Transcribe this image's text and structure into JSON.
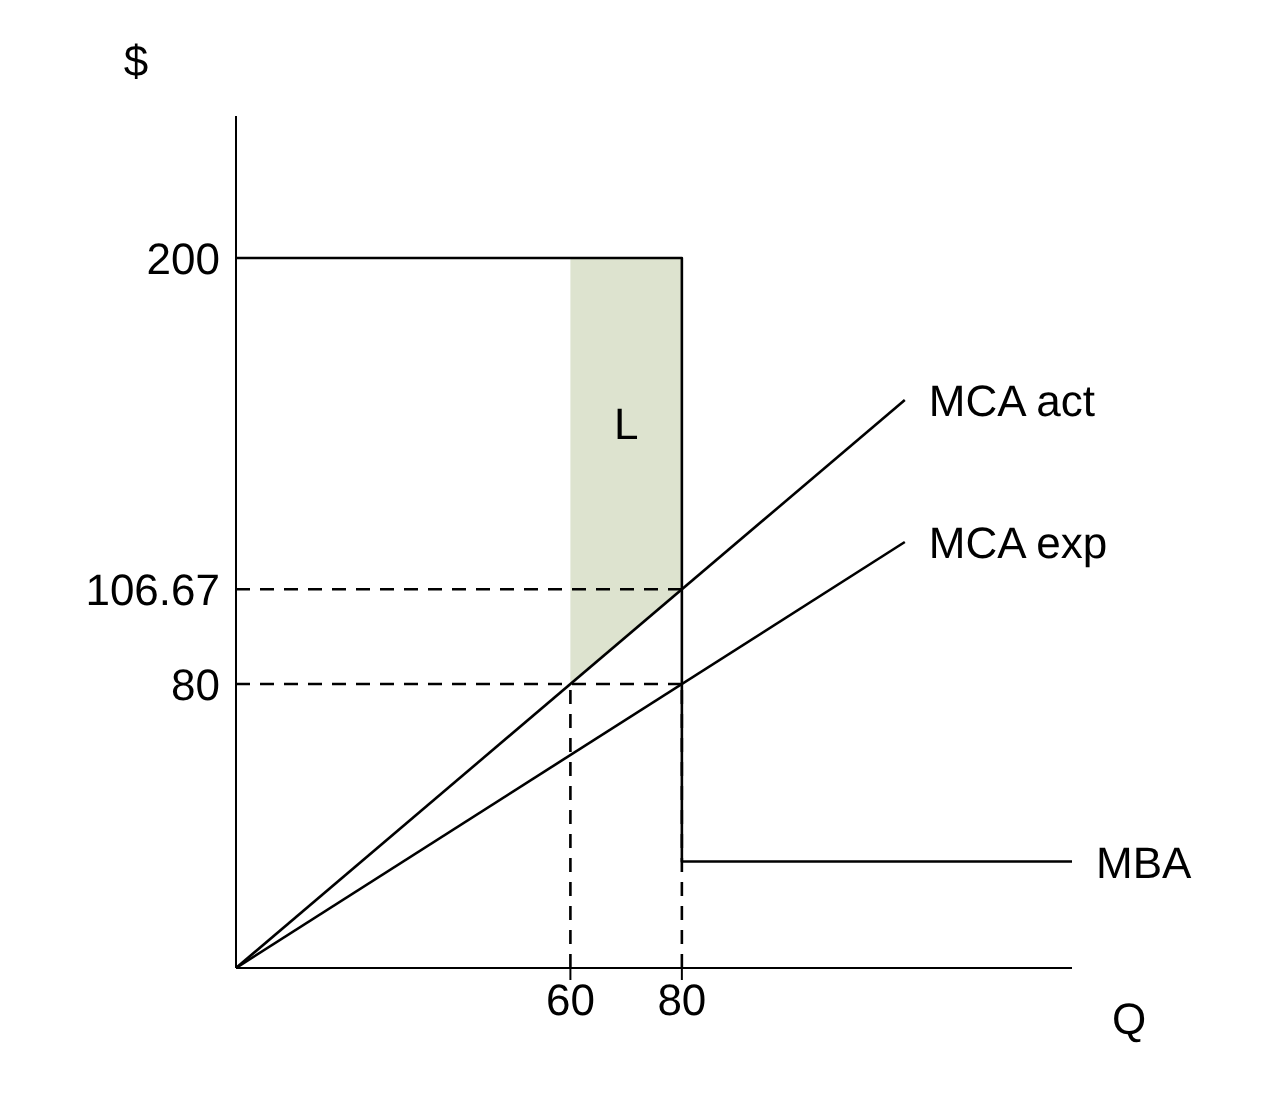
{
  "chart_data": {
    "type": "line",
    "xlabel": "Q",
    "ylabel": "$",
    "xlim": [
      0,
      150
    ],
    "ylim": [
      0,
      240
    ],
    "xticks": [
      60,
      80
    ],
    "yticks": [
      80,
      106.67,
      200
    ],
    "marker": "none",
    "annotations": [
      "L"
    ],
    "series": [
      {
        "color": "#dde3cf",
        "x": [
          60,
          80
        ],
        "values": [
          null,
          null
        ],
        "lower": [
          80,
          106.67
        ],
        "upper": [
          200,
          200
        ]
      },
      {
        "name": "MBA",
        "color": "#000000",
        "x": [
          0,
          80,
          80,
          150
        ],
        "values": [
          200,
          200,
          30,
          30
        ]
      },
      {
        "name": "MCA act",
        "color": "#000000",
        "x": [
          0,
          120
        ],
        "values": [
          0,
          160
        ]
      },
      {
        "name": "MCA exp",
        "color": "#000000",
        "x": [
          0,
          120
        ],
        "values": [
          0,
          120
        ]
      },
      {
        "color": "#000000",
        "line_style": "dashed",
        "x": [
          0,
          80
        ],
        "values": [
          106.67,
          106.67
        ]
      },
      {
        "color": "#000000",
        "line_style": "dashed",
        "x": [
          0,
          80
        ],
        "values": [
          80,
          80
        ]
      },
      {
        "color": "#000000",
        "line_style": "dashed",
        "x": [
          60,
          60
        ],
        "values": [
          0,
          80
        ]
      },
      {
        "color": "#000000",
        "line_style": "dashed",
        "x": [
          80,
          80
        ],
        "values": [
          0,
          80
        ]
      }
    ]
  }
}
